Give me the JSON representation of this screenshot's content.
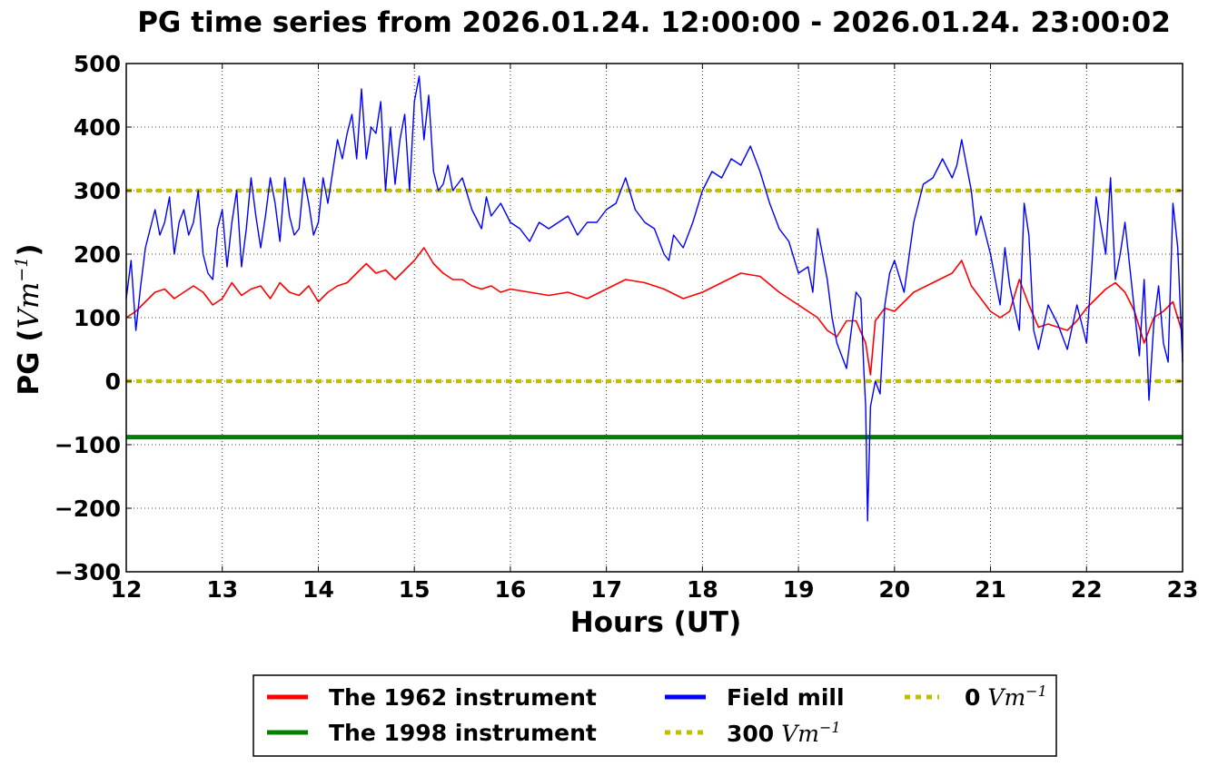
{
  "chart_data": {
    "type": "line",
    "title": "PG time series from 2026.01.24. 12:00:00 - 2026.01.24. 23:00:02",
    "xlabel": "Hours (UT)",
    "ylabel": {
      "prefix": "PG (",
      "math": "Vm",
      "sup": "−1",
      "suffix": ")"
    },
    "xlim": [
      12,
      23
    ],
    "ylim": [
      -300,
      500
    ],
    "xticks": [
      12,
      13,
      14,
      15,
      16,
      17,
      18,
      19,
      20,
      21,
      22,
      23
    ],
    "yticks": [
      -300,
      -200,
      -100,
      0,
      100,
      200,
      300,
      400,
      500
    ],
    "ytick_labels": [
      "−300",
      "−200",
      "−100",
      "0",
      "100",
      "200",
      "300",
      "400",
      "500"
    ],
    "grid": true,
    "legend_position": "below plot, centered",
    "series": [
      {
        "name": "The 1962 instrument",
        "color": "#ff0000",
        "style": "solid",
        "x": [
          12.0,
          12.1,
          12.2,
          12.3,
          12.4,
          12.5,
          12.6,
          12.7,
          12.8,
          12.9,
          13.0,
          13.1,
          13.2,
          13.3,
          13.4,
          13.5,
          13.6,
          13.7,
          13.8,
          13.9,
          14.0,
          14.1,
          14.2,
          14.3,
          14.4,
          14.5,
          14.6,
          14.7,
          14.8,
          14.9,
          15.0,
          15.1,
          15.2,
          15.3,
          15.4,
          15.5,
          15.6,
          15.7,
          15.8,
          15.9,
          16.0,
          16.2,
          16.4,
          16.6,
          16.8,
          17.0,
          17.2,
          17.4,
          17.6,
          17.8,
          18.0,
          18.2,
          18.4,
          18.6,
          18.8,
          19.0,
          19.2,
          19.3,
          19.4,
          19.5,
          19.6,
          19.7,
          19.75,
          19.8,
          19.9,
          20.0,
          20.2,
          20.4,
          20.6,
          20.7,
          20.8,
          21.0,
          21.1,
          21.2,
          21.3,
          21.4,
          21.5,
          21.6,
          21.7,
          21.8,
          21.9,
          22.0,
          22.2,
          22.3,
          22.4,
          22.5,
          22.6,
          22.7,
          22.8,
          22.9,
          23.0
        ],
        "y": [
          100,
          110,
          125,
          140,
          145,
          130,
          140,
          150,
          140,
          120,
          130,
          155,
          135,
          145,
          150,
          130,
          155,
          140,
          135,
          150,
          125,
          140,
          150,
          155,
          170,
          185,
          170,
          175,
          160,
          175,
          190,
          210,
          185,
          170,
          160,
          160,
          150,
          145,
          150,
          140,
          145,
          140,
          135,
          140,
          130,
          145,
          160,
          155,
          145,
          130,
          140,
          155,
          170,
          165,
          140,
          120,
          100,
          80,
          70,
          95,
          95,
          60,
          10,
          95,
          115,
          110,
          140,
          155,
          170,
          190,
          150,
          110,
          100,
          110,
          160,
          120,
          85,
          90,
          85,
          80,
          95,
          115,
          145,
          155,
          140,
          110,
          60,
          100,
          110,
          125,
          75
        ]
      },
      {
        "name": "The 1998 instrument",
        "color": "#008000",
        "style": "solid",
        "x": [
          12,
          23
        ],
        "y": [
          -88,
          -88
        ]
      },
      {
        "name": "Field mill",
        "color": "#0000ff",
        "style": "solid",
        "x": [
          12.0,
          12.05,
          12.1,
          12.15,
          12.2,
          12.3,
          12.35,
          12.4,
          12.45,
          12.5,
          12.55,
          12.6,
          12.65,
          12.7,
          12.75,
          12.8,
          12.85,
          12.9,
          12.95,
          13.0,
          13.05,
          13.1,
          13.15,
          13.2,
          13.25,
          13.3,
          13.35,
          13.4,
          13.45,
          13.5,
          13.55,
          13.6,
          13.65,
          13.7,
          13.75,
          13.8,
          13.85,
          13.9,
          13.95,
          14.0,
          14.05,
          14.1,
          14.15,
          14.2,
          14.25,
          14.3,
          14.35,
          14.4,
          14.45,
          14.5,
          14.55,
          14.6,
          14.65,
          14.7,
          14.75,
          14.8,
          14.85,
          14.9,
          14.95,
          15.0,
          15.05,
          15.1,
          15.15,
          15.2,
          15.25,
          15.3,
          15.35,
          15.4,
          15.5,
          15.6,
          15.7,
          15.75,
          15.8,
          15.9,
          16.0,
          16.1,
          16.2,
          16.3,
          16.4,
          16.5,
          16.6,
          16.7,
          16.8,
          16.9,
          17.0,
          17.1,
          17.2,
          17.3,
          17.4,
          17.5,
          17.6,
          17.65,
          17.7,
          17.8,
          17.9,
          18.0,
          18.1,
          18.2,
          18.3,
          18.4,
          18.5,
          18.6,
          18.7,
          18.8,
          18.9,
          19.0,
          19.1,
          19.15,
          19.2,
          19.3,
          19.35,
          19.4,
          19.5,
          19.6,
          19.65,
          19.68,
          19.7,
          19.72,
          19.75,
          19.8,
          19.85,
          19.9,
          19.95,
          20.0,
          20.1,
          20.2,
          20.3,
          20.4,
          20.5,
          20.6,
          20.65,
          20.7,
          20.8,
          20.85,
          20.9,
          21.0,
          21.1,
          21.15,
          21.2,
          21.3,
          21.35,
          21.4,
          21.45,
          21.5,
          21.6,
          21.7,
          21.8,
          21.9,
          22.0,
          22.05,
          22.1,
          22.2,
          22.25,
          22.3,
          22.35,
          22.4,
          22.5,
          22.55,
          22.6,
          22.65,
          22.7,
          22.75,
          22.8,
          22.85,
          22.9,
          22.95,
          23.0
        ],
        "y": [
          130,
          190,
          80,
          150,
          210,
          270,
          230,
          250,
          290,
          200,
          250,
          270,
          230,
          250,
          300,
          200,
          170,
          160,
          240,
          270,
          180,
          250,
          300,
          180,
          240,
          320,
          260,
          210,
          260,
          320,
          280,
          220,
          320,
          260,
          230,
          240,
          320,
          280,
          230,
          250,
          320,
          280,
          330,
          380,
          350,
          390,
          420,
          350,
          460,
          350,
          400,
          390,
          440,
          300,
          400,
          310,
          380,
          420,
          300,
          440,
          480,
          380,
          450,
          330,
          300,
          310,
          340,
          300,
          320,
          270,
          240,
          290,
          260,
          280,
          250,
          240,
          220,
          250,
          240,
          250,
          260,
          230,
          250,
          250,
          270,
          280,
          320,
          270,
          250,
          240,
          200,
          190,
          230,
          210,
          250,
          300,
          330,
          320,
          350,
          340,
          370,
          330,
          280,
          240,
          220,
          170,
          180,
          140,
          240,
          160,
          100,
          60,
          20,
          140,
          130,
          20,
          -40,
          -220,
          -40,
          0,
          -20,
          120,
          170,
          190,
          140,
          250,
          310,
          320,
          350,
          320,
          340,
          380,
          300,
          230,
          260,
          200,
          120,
          210,
          150,
          80,
          280,
          230,
          80,
          50,
          120,
          90,
          50,
          120,
          60,
          170,
          290,
          200,
          320,
          160,
          200,
          250,
          110,
          40,
          160,
          -30,
          90,
          150,
          60,
          30,
          280,
          210,
          30
        ]
      },
      {
        "name": "300",
        "math": "Vm",
        "sup": "−1",
        "color": "#bfbf00",
        "style": "dotted",
        "x": [
          12,
          23
        ],
        "y": [
          300,
          300
        ]
      },
      {
        "name": "0",
        "math": "Vm",
        "sup": "−1",
        "color": "#bfbf00",
        "style": "dotted",
        "x": [
          12,
          23
        ],
        "y": [
          0,
          0
        ]
      }
    ]
  }
}
